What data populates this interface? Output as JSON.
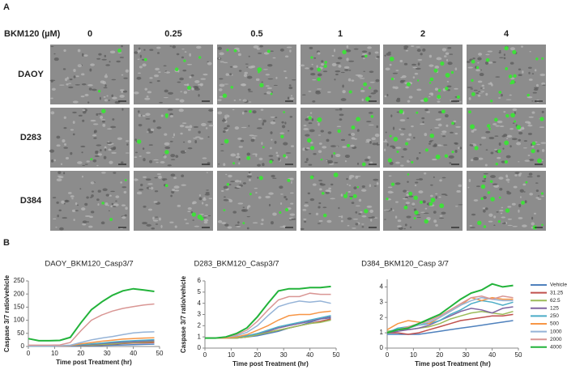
{
  "panel_a": {
    "label": "A",
    "treatment_label": "BKM120 (µM)",
    "concentrations": [
      "0",
      "0.25",
      "0.5",
      "1",
      "2",
      "4"
    ],
    "cell_lines": [
      "DAOY",
      "D283",
      "D384"
    ]
  },
  "panel_b_label": "B",
  "chart_data": [
    {
      "type": "line",
      "title": "DAOY_BKM120_Casp3/7",
      "xlabel": "Time post Treatment (hr)",
      "ylabel": "Caspase 3/7 ratio/vehicle",
      "x": [
        0,
        4,
        8,
        12,
        16,
        20,
        24,
        28,
        32,
        36,
        40,
        44,
        48
      ],
      "xlim": [
        0,
        50
      ],
      "xticks": [
        0,
        10,
        20,
        30,
        40,
        50
      ],
      "ylim": [
        0,
        250
      ],
      "yticks": [
        0,
        50,
        100,
        150,
        200,
        250
      ],
      "series": [
        {
          "color": "#4f81bd",
          "values": [
            1,
            1,
            1,
            1,
            1,
            2,
            3,
            4,
            5,
            6,
            7,
            8,
            9
          ]
        },
        {
          "color": "#c0504d",
          "values": [
            1,
            1,
            1,
            1,
            2,
            3,
            5,
            7,
            9,
            11,
            13,
            14,
            15
          ]
        },
        {
          "color": "#9bbb59",
          "values": [
            1,
            1,
            1,
            1,
            2,
            4,
            6,
            8,
            10,
            13,
            15,
            17,
            19
          ]
        },
        {
          "color": "#8064a2",
          "values": [
            1,
            1,
            1,
            1,
            2,
            5,
            8,
            11,
            14,
            16,
            18,
            20,
            22
          ]
        },
        {
          "color": "#4bacc6",
          "values": [
            1,
            1,
            1,
            2,
            3,
            7,
            10,
            13,
            17,
            20,
            22,
            24,
            26
          ]
        },
        {
          "color": "#f79646",
          "values": [
            2,
            2,
            2,
            2,
            4,
            10,
            15,
            20,
            24,
            28,
            30,
            32,
            33
          ]
        },
        {
          "color": "#95b3d7",
          "values": [
            2,
            2,
            2,
            3,
            5,
            15,
            25,
            32,
            38,
            45,
            52,
            55,
            56
          ]
        },
        {
          "color": "#d99694",
          "values": [
            5,
            5,
            5,
            6,
            15,
            60,
            100,
            120,
            135,
            145,
            152,
            158,
            162
          ]
        },
        {
          "color": "#22b33a",
          "values": [
            30,
            22,
            22,
            23,
            35,
            90,
            140,
            170,
            195,
            212,
            220,
            215,
            210
          ]
        }
      ]
    },
    {
      "type": "line",
      "title": "D283_BKM120_Casp3/7",
      "xlabel": "Time post Treatment (hr)",
      "ylabel": "Caspase 3/7 ratio/vehicle",
      "x": [
        0,
        4,
        8,
        12,
        16,
        20,
        24,
        28,
        32,
        36,
        40,
        44,
        48
      ],
      "xlim": [
        0,
        50
      ],
      "xticks": [
        0,
        10,
        20,
        30,
        40,
        50
      ],
      "ylim": [
        0,
        6
      ],
      "yticks": [
        0,
        1,
        2,
        3,
        4,
        5,
        6
      ],
      "series": [
        {
          "color": "#4f81bd",
          "values": [
            0.9,
            0.9,
            0.9,
            0.9,
            1.0,
            1.1,
            1.3,
            1.5,
            1.8,
            2.0,
            2.3,
            2.6,
            2.7
          ]
        },
        {
          "color": "#c0504d",
          "values": [
            0.9,
            0.9,
            0.9,
            0.9,
            1.0,
            1.2,
            1.4,
            1.6,
            1.8,
            2.0,
            2.2,
            2.4,
            2.6
          ]
        },
        {
          "color": "#9bbb59",
          "values": [
            0.9,
            0.9,
            0.9,
            0.9,
            1.0,
            1.2,
            1.4,
            1.6,
            1.8,
            2.0,
            2.2,
            2.3,
            2.5
          ]
        },
        {
          "color": "#8064a2",
          "values": [
            0.9,
            0.9,
            0.9,
            1.0,
            1.1,
            1.3,
            1.5,
            1.8,
            2.0,
            2.2,
            2.4,
            2.6,
            2.8
          ]
        },
        {
          "color": "#4bacc6",
          "values": [
            0.9,
            0.9,
            0.9,
            1.0,
            1.1,
            1.3,
            1.6,
            1.9,
            2.1,
            2.3,
            2.5,
            2.7,
            2.9
          ]
        },
        {
          "color": "#f79646",
          "values": [
            0.9,
            0.9,
            0.9,
            1.0,
            1.2,
            1.6,
            2.0,
            2.5,
            2.9,
            3.0,
            3.0,
            3.2,
            3.3
          ]
        },
        {
          "color": "#95b3d7",
          "values": [
            0.9,
            0.9,
            1.0,
            1.1,
            1.4,
            2.0,
            2.9,
            3.7,
            4.0,
            4.2,
            4.1,
            4.2,
            4.0
          ]
        },
        {
          "color": "#d99694",
          "values": [
            0.9,
            0.9,
            1.0,
            1.2,
            1.6,
            2.4,
            3.4,
            4.3,
            4.6,
            4.6,
            4.9,
            4.8,
            4.8
          ]
        },
        {
          "color": "#22b33a",
          "values": [
            0.9,
            0.9,
            1.0,
            1.3,
            1.8,
            2.8,
            4.0,
            5.1,
            5.3,
            5.3,
            5.4,
            5.4,
            5.5
          ]
        }
      ]
    },
    {
      "type": "line",
      "title": "D384_BKM120_Casp  3/7",
      "xlabel": "Time post Treatment (hr)",
      "x": [
        0,
        4,
        8,
        12,
        16,
        20,
        24,
        28,
        32,
        36,
        40,
        44,
        48
      ],
      "xlim": [
        0,
        50
      ],
      "xticks": [
        0,
        10,
        20,
        30,
        40,
        50
      ],
      "ylim": [
        0,
        4.5
      ],
      "yticks": [
        0,
        1,
        2,
        3,
        4
      ],
      "legend": "right",
      "series": [
        {
          "name": "Vehicle",
          "color": "#4f81bd",
          "values": [
            0.9,
            0.9,
            0.9,
            0.9,
            1.0,
            1.1,
            1.2,
            1.3,
            1.4,
            1.5,
            1.6,
            1.7,
            1.8
          ]
        },
        {
          "name": "31.25",
          "color": "#c0504d",
          "values": [
            1.0,
            1.0,
            0.9,
            1.0,
            1.2,
            1.4,
            1.6,
            1.8,
            1.9,
            2.0,
            2.1,
            2.1,
            2.2
          ]
        },
        {
          "name": "62.5",
          "color": "#9bbb59",
          "values": [
            1.1,
            1.2,
            1.2,
            1.3,
            1.4,
            1.6,
            1.9,
            2.1,
            2.3,
            2.4,
            2.3,
            2.2,
            2.4
          ]
        },
        {
          "name": "125",
          "color": "#8064a2",
          "values": [
            1.0,
            1.1,
            1.2,
            1.3,
            1.5,
            1.8,
            2.1,
            2.4,
            2.6,
            2.5,
            2.3,
            2.6,
            2.7
          ]
        },
        {
          "name": "250",
          "color": "#4bacc6",
          "values": [
            1.0,
            1.3,
            1.4,
            1.5,
            1.6,
            1.8,
            2.2,
            2.5,
            2.9,
            3.1,
            3.0,
            2.8,
            3.0
          ]
        },
        {
          "name": "500",
          "color": "#f79646",
          "values": [
            1.2,
            1.6,
            1.8,
            1.7,
            1.6,
            2.0,
            2.4,
            2.8,
            3.3,
            3.1,
            3.3,
            3.2,
            3.2
          ]
        },
        {
          "name": "1000",
          "color": "#95b3d7",
          "values": [
            1.0,
            1.2,
            1.3,
            1.5,
            1.7,
            2.0,
            2.4,
            2.8,
            3.1,
            3.3,
            3.2,
            3.1,
            3.1
          ]
        },
        {
          "name": "2000",
          "color": "#d99694",
          "values": [
            1.0,
            1.2,
            1.4,
            1.6,
            1.8,
            2.1,
            2.5,
            2.9,
            3.3,
            3.4,
            3.2,
            3.4,
            3.3
          ]
        },
        {
          "name": "4000",
          "color": "#22b33a",
          "values": [
            1.0,
            1.2,
            1.3,
            1.6,
            1.9,
            2.2,
            2.7,
            3.2,
            3.6,
            3.8,
            4.2,
            4.0,
            4.1
          ]
        }
      ]
    }
  ]
}
